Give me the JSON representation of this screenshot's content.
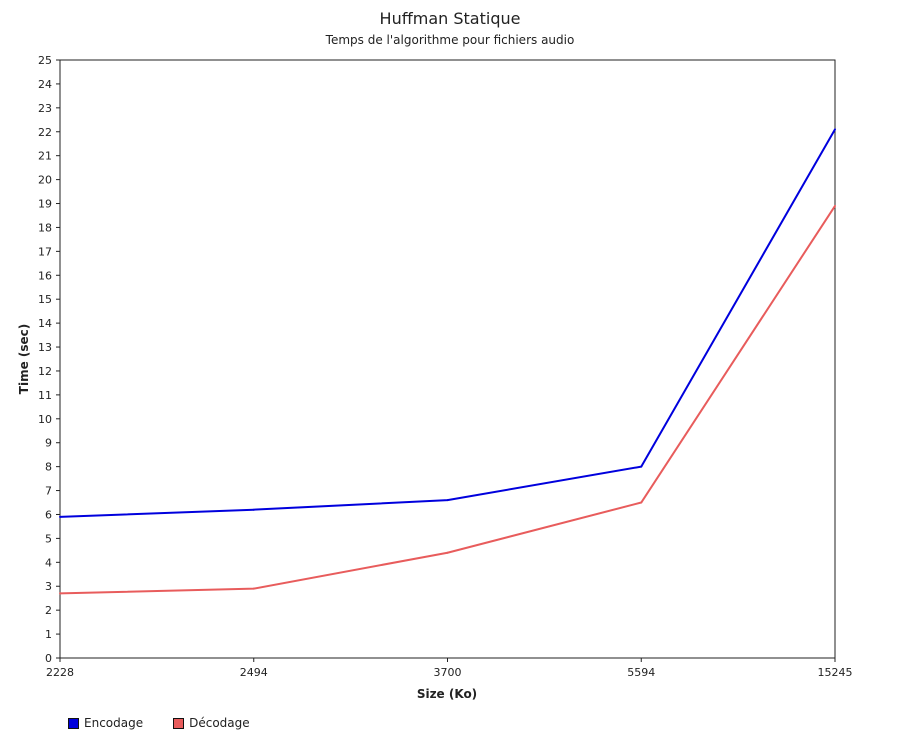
{
  "chart_data": {
    "type": "line",
    "title": "Huffman Statique",
    "subtitle": "Temps de l'algorithme pour fichiers audio",
    "xlabel": "Size (Ko)",
    "ylabel": "Time (sec)",
    "categories": [
      "2228",
      "2494",
      "3700",
      "5594",
      "15245"
    ],
    "ylim": [
      0,
      25
    ],
    "yticks": [
      0,
      1,
      2,
      3,
      4,
      5,
      6,
      7,
      8,
      9,
      10,
      11,
      12,
      13,
      14,
      15,
      16,
      17,
      18,
      19,
      20,
      21,
      22,
      23,
      24,
      25
    ],
    "grid": false,
    "legend_position": "bottom-left",
    "series": [
      {
        "name": "Encodage",
        "color": "#0000dd",
        "values": [
          5.9,
          6.2,
          6.6,
          8.0,
          22.1
        ]
      },
      {
        "name": "Décodage",
        "color": "#e85c5c",
        "values": [
          2.7,
          2.9,
          4.4,
          6.5,
          18.9
        ]
      }
    ]
  }
}
